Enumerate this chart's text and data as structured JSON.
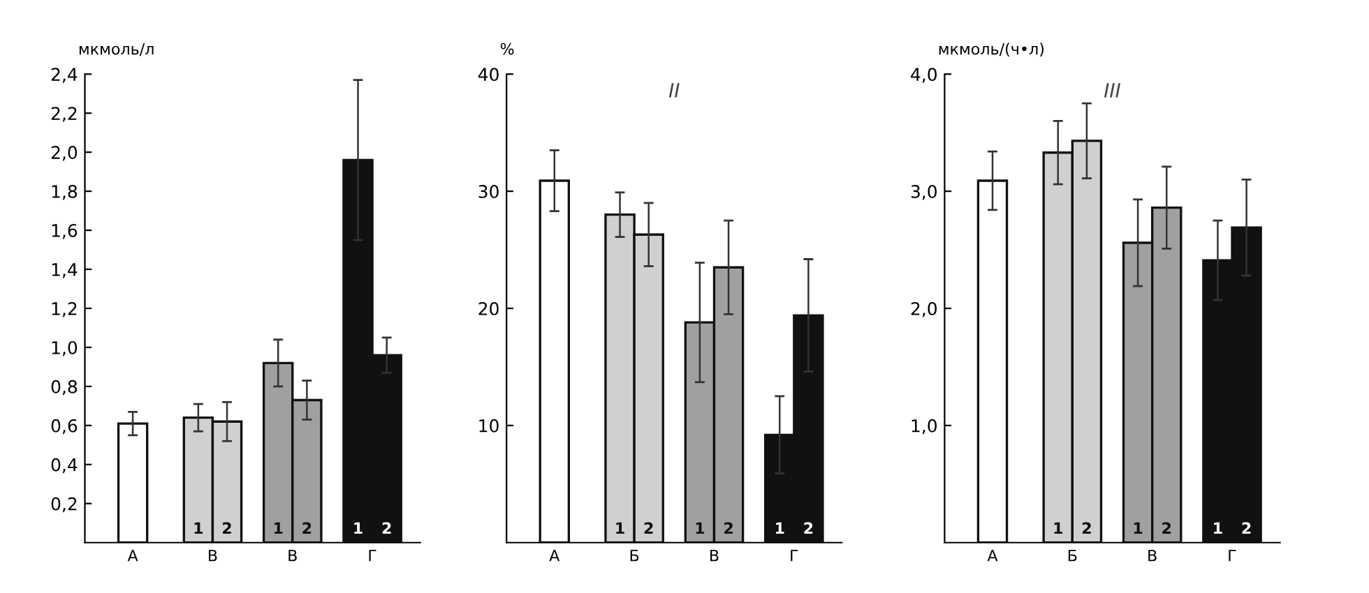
{
  "chart_data": [
    {
      "type": "bar",
      "ylabel": "мкмоль/л",
      "categories": [
        "А",
        "В",
        "В",
        "Г"
      ],
      "series": [
        {
          "name": "1",
          "colors": [
            "#ffffff",
            "#d0d0d0",
            "#a0a0a0",
            "#111111"
          ],
          "values": [
            0.61,
            0.64,
            0.92,
            1.96
          ],
          "errors": [
            0.06,
            0.07,
            0.12,
            0.41
          ]
        },
        {
          "name": "2",
          "colors": [
            null,
            "#d0d0d0",
            "#a0a0a0",
            "#111111"
          ],
          "values": [
            null,
            0.62,
            0.73,
            0.96
          ],
          "errors": [
            null,
            0.1,
            0.1,
            0.09
          ]
        }
      ],
      "ylim": [
        0,
        2.4
      ],
      "yticks": [
        {
          "value": 0.2,
          "label": "0,2"
        },
        {
          "value": 0.4,
          "label": "0,4"
        },
        {
          "value": 0.6,
          "label": "0,6"
        },
        {
          "value": 0.8,
          "label": "0,8"
        },
        {
          "value": 1.0,
          "label": "1,0"
        },
        {
          "value": 1.2,
          "label": "1,2"
        },
        {
          "value": 1.4,
          "label": "1,4"
        },
        {
          "value": 1.6,
          "label": "1,6"
        },
        {
          "value": 1.8,
          "label": "1,8"
        },
        {
          "value": 2.0,
          "label": "2,0"
        },
        {
          "value": 2.2,
          "label": "2,2"
        },
        {
          "value": 2.4,
          "label": "2,4"
        }
      ],
      "grid": false,
      "legend": false
    },
    {
      "type": "bar",
      "title": "II",
      "ylabel": "%",
      "categories": [
        "А",
        "Б",
        "В",
        "Г"
      ],
      "series": [
        {
          "name": "1",
          "colors": [
            "#ffffff",
            "#d0d0d0",
            "#a0a0a0",
            "#111111"
          ],
          "values": [
            30.9,
            28.0,
            18.8,
            9.2
          ],
          "errors": [
            2.6,
            1.9,
            5.1,
            3.3
          ]
        },
        {
          "name": "2",
          "colors": [
            null,
            "#d0d0d0",
            "#a0a0a0",
            "#111111"
          ],
          "values": [
            null,
            26.3,
            23.5,
            19.4
          ],
          "errors": [
            null,
            2.7,
            4.0,
            4.8
          ]
        }
      ],
      "ylim": [
        0,
        40
      ],
      "yticks": [
        10,
        20,
        30,
        40
      ],
      "grid": false,
      "legend": false
    },
    {
      "type": "bar",
      "title": "III",
      "ylabel": "мкмоль/(ч•л)",
      "categories": [
        "А",
        "Б",
        "В",
        "Г"
      ],
      "series": [
        {
          "name": "1",
          "colors": [
            "#ffffff",
            "#d0d0d0",
            "#a0a0a0",
            "#111111"
          ],
          "values": [
            3.09,
            3.33,
            2.56,
            2.41
          ],
          "errors": [
            0.25,
            0.27,
            0.37,
            0.34
          ]
        },
        {
          "name": "2",
          "colors": [
            null,
            "#d0d0d0",
            "#a0a0a0",
            "#111111"
          ],
          "values": [
            null,
            3.43,
            2.86,
            2.69
          ],
          "errors": [
            null,
            0.32,
            0.35,
            0.41
          ]
        }
      ],
      "ylim": [
        0,
        4.0
      ],
      "yticks": [
        {
          "value": 1.0,
          "label": "1,0"
        },
        {
          "value": 2.0,
          "label": "2,0"
        },
        {
          "value": 3.0,
          "label": "3,0"
        },
        {
          "value": 4.0,
          "label": "4,0"
        }
      ],
      "grid": false,
      "legend": false
    }
  ]
}
